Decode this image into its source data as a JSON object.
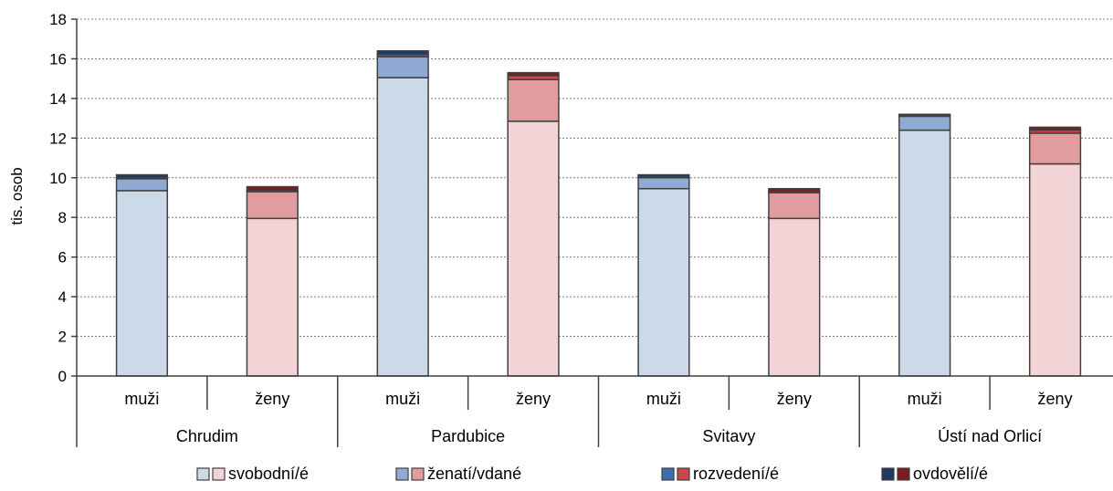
{
  "chart_data": {
    "type": "bar",
    "stacked": true,
    "ylabel": "tis. osob",
    "ylim": [
      0,
      18
    ],
    "yticks": [
      0,
      2,
      4,
      6,
      8,
      10,
      12,
      14,
      16,
      18
    ],
    "grid": true,
    "legend_position": "bottom",
    "groups": [
      "Chrudim",
      "Pardubice",
      "Svitavy",
      "Ústí nad Orlicí"
    ],
    "subcategories": [
      "muži",
      "ženy"
    ],
    "series": [
      {
        "name": "svobodní/é",
        "values": [
          [
            9.35,
            7.95
          ],
          [
            15.05,
            12.85
          ],
          [
            9.45,
            7.95
          ],
          [
            12.4,
            10.7
          ]
        ]
      },
      {
        "name": "ženatí/vdané",
        "values": [
          [
            0.6,
            1.35
          ],
          [
            1.05,
            2.1
          ],
          [
            0.55,
            1.3
          ],
          [
            0.7,
            1.55
          ]
        ]
      },
      {
        "name": "rozvedení/é",
        "values": [
          [
            0.07,
            0.05
          ],
          [
            0.12,
            0.2
          ],
          [
            0.05,
            0.05
          ],
          [
            0.05,
            0.15
          ]
        ]
      },
      {
        "name": "ovdovělí/é",
        "values": [
          [
            0.13,
            0.2
          ],
          [
            0.18,
            0.15
          ],
          [
            0.1,
            0.15
          ],
          [
            0.05,
            0.15
          ]
        ]
      }
    ],
    "colors": {
      "male": [
        "#ccd9e8",
        "#8fabd4",
        "#3f6cb3",
        "#1f3864"
      ],
      "female": [
        "#f2d4d6",
        "#e19c9f",
        "#c9464a",
        "#7b1c1e"
      ],
      "outline": "#404040",
      "grid": "#7f7f7f"
    }
  }
}
